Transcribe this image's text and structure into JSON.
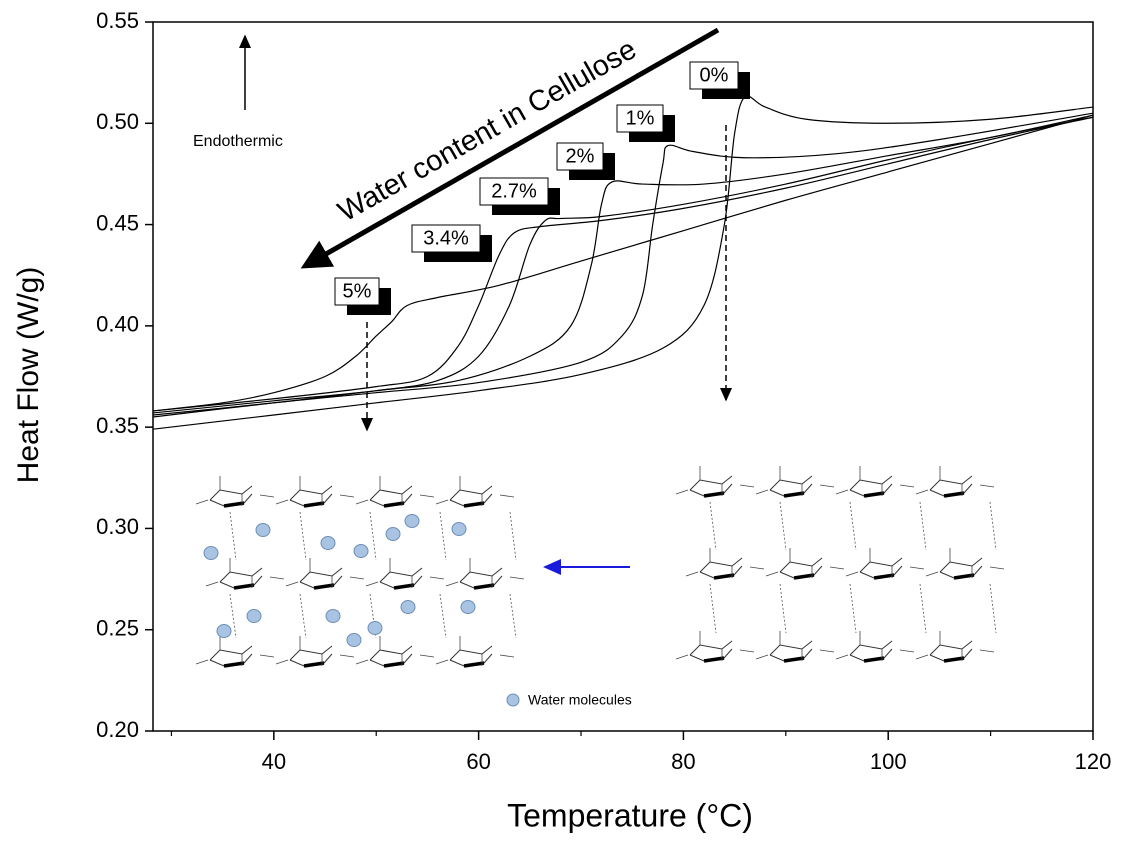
{
  "chart_data": {
    "type": "line",
    "xlabel": "Temperature (°C)",
    "ylabel": "Heat Flow (W/g)",
    "xlim": [
      28.2,
      120
    ],
    "ylim": [
      0.2,
      0.55
    ],
    "xticks": [
      40,
      60,
      80,
      100,
      120
    ],
    "xminorticks": [
      30,
      50,
      70,
      90,
      110
    ],
    "yticks": [
      {
        "value": 0.2,
        "label": "0.20"
      },
      0.25,
      {
        "value": 0.3,
        "label": "0.30"
      },
      0.35,
      {
        "value": 0.4,
        "label": "0.40"
      },
      0.45,
      {
        "value": 0.5,
        "label": "0.50"
      },
      0.55
    ],
    "series": [
      {
        "name": "0%",
        "color": "#000000",
        "x": [
          28.2,
          40,
          50,
          60,
          70,
          78,
          82,
          84,
          85,
          86,
          88,
          92,
          100,
          110,
          120
        ],
        "values": [
          0.349,
          0.356,
          0.362,
          0.368,
          0.376,
          0.389,
          0.41,
          0.45,
          0.495,
          0.513,
          0.508,
          0.502,
          0.5,
          0.502,
          0.508
        ]
      },
      {
        "name": "1%",
        "color": "#000000",
        "x": [
          28.2,
          40,
          50,
          60,
          70,
          74,
          76,
          77,
          78,
          78.5,
          81,
          86,
          95,
          105,
          120
        ],
        "values": [
          0.355,
          0.362,
          0.367,
          0.372,
          0.382,
          0.395,
          0.415,
          0.45,
          0.48,
          0.489,
          0.486,
          0.483,
          0.485,
          0.492,
          0.505
        ]
      },
      {
        "name": "2%",
        "color": "#000000",
        "x": [
          28.2,
          40,
          50,
          58,
          65,
          69,
          71,
          72,
          73,
          76,
          82,
          90,
          100,
          110,
          120
        ],
        "values": [
          0.356,
          0.362,
          0.368,
          0.373,
          0.385,
          0.4,
          0.43,
          0.46,
          0.471,
          0.47,
          0.47,
          0.475,
          0.484,
          0.493,
          0.504
        ]
      },
      {
        "name": "2.7%",
        "color": "#000000",
        "x": [
          28.2,
          40,
          50,
          56,
          60,
          63,
          65,
          66.5,
          68,
          72,
          80,
          90,
          100,
          110,
          120
        ],
        "values": [
          0.357,
          0.363,
          0.368,
          0.373,
          0.385,
          0.41,
          0.44,
          0.452,
          0.453,
          0.454,
          0.46,
          0.47,
          0.482,
          0.493,
          0.503
        ]
      },
      {
        "name": "3.4%",
        "color": "#000000",
        "x": [
          28.2,
          40,
          50,
          55,
          58,
          60,
          62,
          63.5,
          66,
          72,
          80,
          90,
          100,
          110,
          120
        ],
        "values": [
          0.358,
          0.364,
          0.37,
          0.375,
          0.39,
          0.41,
          0.435,
          0.446,
          0.449,
          0.452,
          0.458,
          0.468,
          0.48,
          0.492,
          0.503
        ]
      },
      {
        "name": "5%",
        "color": "#000000",
        "x": [
          28.2,
          35,
          40,
          45,
          48,
          50,
          51.5,
          53,
          56,
          62,
          70,
          80,
          90,
          100,
          110,
          120
        ],
        "values": [
          0.358,
          0.362,
          0.367,
          0.375,
          0.385,
          0.395,
          0.402,
          0.41,
          0.414,
          0.42,
          0.432,
          0.447,
          0.462,
          0.476,
          0.49,
          0.504
        ]
      }
    ],
    "annotations": [
      "Water content in Cellulose",
      "Endothermic",
      "Water molecules"
    ]
  }
}
